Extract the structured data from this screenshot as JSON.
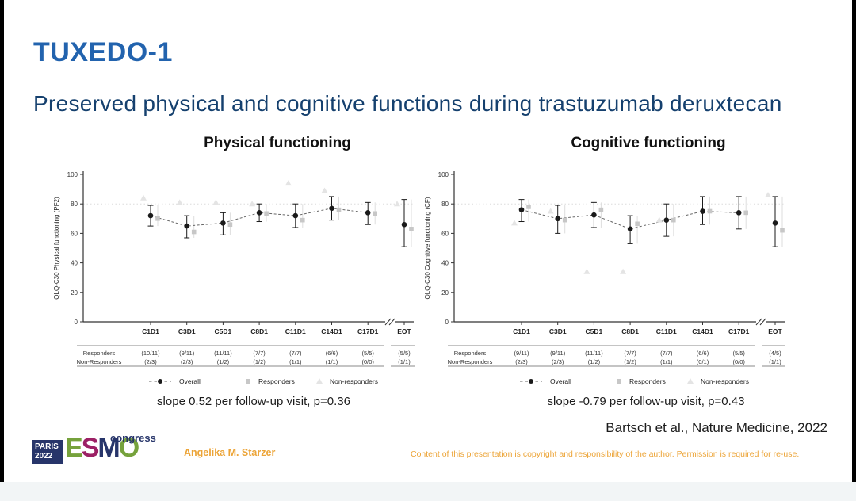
{
  "slide": {
    "title": "TUXEDO-1",
    "subtitle": "Preserved physical and cognitive functions during trastuzumab deruxtecan",
    "citation": "Bartsch et al., Nature Medicine, 2022",
    "author": "Angelika M. Starzer",
    "copyright": "Content of this presentation is copyright and responsibility of the author. Permission is required for re-use.",
    "logo": {
      "city": "PARIS",
      "year": "2022",
      "letters": [
        "E",
        "S",
        "M",
        "O"
      ],
      "congress": "congress"
    }
  },
  "colors": {
    "title_blue": "#2263ae",
    "subtitle_navy": "#15406e",
    "accent_orange": "#eca437",
    "overall_black": "#1a1a1a",
    "dash_line_gray": "#666666",
    "responders_gray": "#c7c7c7",
    "nonresponders_gray": "#e4e4e4",
    "axis_gray": "#333333",
    "logo_navy": "#27356a",
    "logo_green": "#76a23c",
    "logo_magenta": "#9c2065"
  },
  "chart_data": [
    {
      "type": "scatter",
      "title": "Physical functioning",
      "ylabel": "QLQ-C30 Physical functioning (PF2)",
      "xlabel": "",
      "ylim": [
        0,
        100
      ],
      "yticks": [
        0,
        20,
        40,
        60,
        80,
        100
      ],
      "gridline_y": 80,
      "grid": "single dotted line at y=80",
      "legend_position": "bottom",
      "axis_break_before": "EOT",
      "categories": [
        "C1D1",
        "C3D1",
        "C5D1",
        "C8D1",
        "C11D1",
        "C14D1",
        "C17D1",
        "EOT"
      ],
      "series": [
        {
          "name": "Overall",
          "marker": "circle",
          "line": "dashed",
          "values": [
            72,
            65,
            67,
            74,
            72,
            77,
            74,
            66
          ],
          "ci_low": [
            65,
            57,
            59,
            68,
            64,
            69,
            66,
            51
          ],
          "ci_high": [
            79,
            72,
            74,
            80,
            80,
            85,
            81,
            83
          ]
        },
        {
          "name": "Responders",
          "marker": "square",
          "values": [
            70,
            61,
            66,
            73.5,
            69,
            76,
            73.5,
            63
          ]
        },
        {
          "name": "Non-responders",
          "marker": "triangle",
          "values": [
            84,
            81,
            81,
            80,
            94,
            89,
            null,
            80
          ]
        }
      ],
      "counts_table": {
        "row_labels": [
          "Responders",
          "Non-Responders"
        ],
        "rows": [
          [
            "(10/11)",
            "(9/11)",
            "(11/11)",
            "(7/7)",
            "(7/7)",
            "(6/6)",
            "(5/5)",
            "(5/5)"
          ],
          [
            "(2/3)",
            "(2/3)",
            "(1/2)",
            "(1/2)",
            "(1/1)",
            "(1/1)",
            "(0/0)",
            "(1/1)"
          ]
        ]
      },
      "legend": [
        "Overall",
        "Responders",
        "Non-responders"
      ],
      "slope_note": "slope 0.52 per follow-up visit, p=0.36"
    },
    {
      "type": "scatter",
      "title": "Cognitive functioning",
      "ylabel": "QLQ-C30 Cognitive functioning (CF)",
      "xlabel": "",
      "ylim": [
        0,
        100
      ],
      "yticks": [
        0,
        20,
        40,
        60,
        80,
        100
      ],
      "gridline_y": 80,
      "grid": "single dotted line at y=80",
      "legend_position": "bottom",
      "axis_break_before": "EOT",
      "categories": [
        "C1D1",
        "C3D1",
        "C5D1",
        "C8D1",
        "C11D1",
        "C14D1",
        "C17D1",
        "EOT"
      ],
      "series": [
        {
          "name": "Overall",
          "marker": "circle",
          "line": "dashed",
          "values": [
            76,
            70,
            72.5,
            63,
            69,
            75,
            74,
            67
          ],
          "ci_low": [
            68,
            60,
            64,
            53,
            58,
            66,
            63,
            51
          ],
          "ci_high": [
            83,
            79,
            81,
            72,
            80,
            85,
            85,
            85
          ]
        },
        {
          "name": "Responders",
          "marker": "square",
          "values": [
            78,
            69,
            76,
            66.5,
            69,
            75,
            74,
            62
          ]
        },
        {
          "name": "Non-responders",
          "marker": "triangle",
          "values": [
            67,
            75,
            34,
            34,
            69,
            null,
            null,
            86
          ]
        }
      ],
      "counts_table": {
        "row_labels": [
          "Responders",
          "Non-Responders"
        ],
        "rows": [
          [
            "(9/11)",
            "(9/11)",
            "(11/11)",
            "(7/7)",
            "(7/7)",
            "(6/6)",
            "(5/5)",
            "(4/5)"
          ],
          [
            "(2/3)",
            "(2/3)",
            "(1/2)",
            "(1/2)",
            "(1/1)",
            "(0/1)",
            "(0/0)",
            "(1/1)"
          ]
        ]
      },
      "legend": [
        "Overall",
        "Responders",
        "Non-responders"
      ],
      "slope_note": "slope -0.79 per follow-up visit, p=0.43"
    }
  ]
}
